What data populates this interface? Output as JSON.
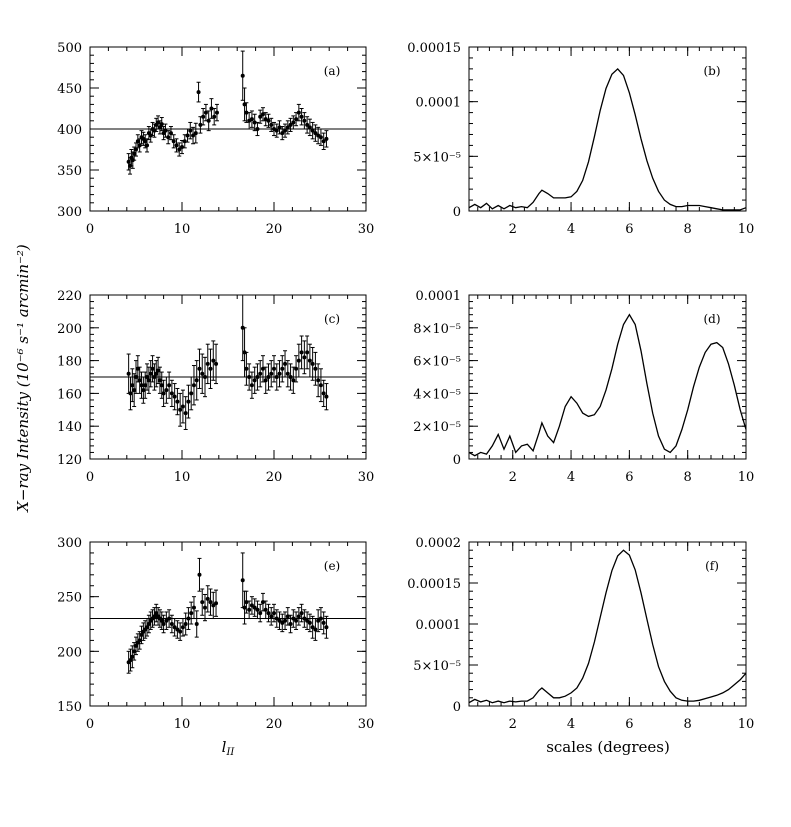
{
  "figure": {
    "ylabel": "X−ray Intensity (10⁻⁶ s⁻¹ arcmin⁻²)",
    "left_xlabel": "l",
    "left_xlabel_sub": "II",
    "right_xlabel": "scales (degrees)"
  },
  "chart_data": [
    {
      "panel": "(a)",
      "type": "scatter",
      "error_bars": true,
      "xlim": [
        0,
        30
      ],
      "ylim": [
        300,
        500
      ],
      "xticks": [
        0,
        10,
        20,
        30
      ],
      "yticks": [
        300,
        350,
        400,
        450,
        500
      ],
      "hline": 400,
      "x": [
        4.2,
        4.35,
        4.5,
        4.65,
        4.8,
        5.0,
        5.2,
        5.4,
        5.6,
        5.8,
        6.0,
        6.2,
        6.4,
        6.6,
        6.8,
        7.0,
        7.2,
        7.4,
        7.6,
        7.8,
        8.0,
        8.2,
        8.5,
        8.8,
        9.1,
        9.4,
        9.7,
        10.0,
        10.3,
        10.6,
        10.9,
        11.2,
        11.5,
        11.8,
        12.0,
        12.3,
        12.6,
        12.9,
        13.2,
        13.5,
        13.8,
        16.6,
        16.8,
        17.0,
        17.3,
        17.6,
        17.9,
        18.2,
        18.5,
        18.8,
        19.1,
        19.4,
        19.7,
        20.0,
        20.3,
        20.6,
        20.9,
        21.2,
        21.5,
        21.8,
        22.1,
        22.4,
        22.7,
        23.0,
        23.3,
        23.6,
        23.9,
        24.2,
        24.5,
        24.8,
        25.1,
        25.4,
        25.7
      ],
      "y": [
        360,
        355,
        365,
        362,
        370,
        375,
        385,
        380,
        390,
        388,
        385,
        380,
        395,
        392,
        400,
        398,
        405,
        408,
        402,
        406,
        395,
        398,
        390,
        395,
        385,
        380,
        375,
        378,
        385,
        392,
        398,
        392,
        395,
        445,
        405,
        415,
        420,
        410,
        425,
        415,
        420,
        465,
        430,
        420,
        410,
        412,
        408,
        400,
        415,
        418,
        412,
        410,
        405,
        400,
        398,
        402,
        395,
        398,
        402,
        405,
        408,
        412,
        420,
        415,
        410,
        405,
        402,
        398,
        395,
        392,
        390,
        385,
        388
      ],
      "err": [
        10,
        10,
        10,
        10,
        8,
        8,
        8,
        8,
        8,
        8,
        8,
        8,
        8,
        8,
        8,
        8,
        8,
        8,
        8,
        8,
        8,
        8,
        8,
        8,
        8,
        8,
        8,
        8,
        8,
        8,
        10,
        10,
        12,
        12,
        10,
        10,
        10,
        12,
        12,
        10,
        10,
        30,
        20,
        12,
        10,
        10,
        10,
        8,
        8,
        8,
        8,
        8,
        8,
        8,
        8,
        8,
        8,
        8,
        8,
        8,
        8,
        8,
        10,
        10,
        10,
        10,
        10,
        10,
        10,
        10,
        10,
        10,
        10
      ]
    },
    {
      "panel": "(b)",
      "type": "line",
      "xlim": [
        0.5,
        10
      ],
      "ylim": [
        0,
        0.00015
      ],
      "xticks": [
        2,
        4,
        6,
        8,
        10
      ],
      "yticks": [
        0,
        5e-05,
        0.0001,
        0.00015
      ],
      "ytick_labels": [
        "0",
        "5×10⁻⁵",
        "0.0001",
        "0.00015"
      ],
      "x": [
        0.5,
        0.7,
        0.9,
        1.1,
        1.3,
        1.5,
        1.7,
        1.9,
        2.1,
        2.3,
        2.5,
        2.7,
        2.9,
        3.0,
        3.2,
        3.4,
        3.6,
        3.8,
        4.0,
        4.2,
        4.4,
        4.6,
        4.8,
        5.0,
        5.2,
        5.4,
        5.6,
        5.8,
        6.0,
        6.2,
        6.4,
        6.6,
        6.8,
        7.0,
        7.2,
        7.4,
        7.6,
        7.8,
        8.0,
        8.2,
        8.4,
        8.6,
        8.8,
        9.0,
        9.2,
        9.4,
        9.6,
        9.8,
        10.0
      ],
      "y": [
        3e-06,
        6e-06,
        3e-06,
        7e-06,
        2e-06,
        5e-06,
        2e-06,
        5e-06,
        3e-06,
        4e-06,
        3e-06,
        8e-06,
        1.6e-05,
        1.9e-05,
        1.6e-05,
        1.2e-05,
        1.2e-05,
        1.2e-05,
        1.3e-05,
        1.8e-05,
        2.8e-05,
        4.5e-05,
        6.8e-05,
        9.2e-05,
        0.000112,
        0.000125,
        0.00013,
        0.000124,
        0.000108,
        8.8e-05,
        6.6e-05,
        4.6e-05,
        3e-05,
        1.8e-05,
        1e-05,
        6e-06,
        4e-06,
        4e-06,
        5e-06,
        5e-06,
        5e-06,
        4e-06,
        3e-06,
        2e-06,
        1e-06,
        1e-06,
        1e-06,
        1e-06,
        3e-06
      ]
    },
    {
      "panel": "(c)",
      "type": "scatter",
      "error_bars": true,
      "xlim": [
        0,
        30
      ],
      "ylim": [
        120,
        220
      ],
      "xticks": [
        0,
        10,
        20,
        30
      ],
      "yticks": [
        120,
        140,
        160,
        180,
        200,
        220
      ],
      "hline": 170,
      "x": [
        4.2,
        4.4,
        4.6,
        4.8,
        5.0,
        5.2,
        5.4,
        5.6,
        5.8,
        6.0,
        6.2,
        6.4,
        6.6,
        6.8,
        7.0,
        7.2,
        7.4,
        7.6,
        7.8,
        8.0,
        8.3,
        8.6,
        8.9,
        9.2,
        9.5,
        9.8,
        10.1,
        10.4,
        10.7,
        11.0,
        11.3,
        11.6,
        11.9,
        12.2,
        12.5,
        12.8,
        13.1,
        13.4,
        13.7,
        16.6,
        16.8,
        17.0,
        17.3,
        17.6,
        17.9,
        18.2,
        18.5,
        18.8,
        19.1,
        19.4,
        19.7,
        20.0,
        20.3,
        20.6,
        20.9,
        21.2,
        21.5,
        21.8,
        22.1,
        22.4,
        22.7,
        23.0,
        23.3,
        23.6,
        23.9,
        24.2,
        24.5,
        24.8,
        25.1,
        25.4,
        25.7
      ],
      "y": [
        172,
        160,
        165,
        162,
        170,
        175,
        168,
        165,
        162,
        165,
        170,
        168,
        172,
        175,
        170,
        172,
        174,
        168,
        165,
        160,
        162,
        165,
        160,
        158,
        155,
        150,
        152,
        148,
        155,
        160,
        165,
        168,
        175,
        172,
        170,
        178,
        175,
        180,
        178,
        200,
        185,
        175,
        170,
        165,
        168,
        170,
        172,
        175,
        168,
        170,
        172,
        175,
        170,
        172,
        175,
        178,
        172,
        170,
        168,
        175,
        180,
        185,
        182,
        185,
        180,
        178,
        175,
        168,
        165,
        160,
        158
      ],
      "err": [
        12,
        10,
        10,
        10,
        10,
        8,
        8,
        8,
        8,
        8,
        8,
        8,
        8,
        8,
        8,
        8,
        8,
        8,
        8,
        8,
        8,
        8,
        8,
        8,
        8,
        10,
        10,
        10,
        10,
        10,
        12,
        12,
        12,
        12,
        12,
        12,
        12,
        12,
        12,
        20,
        15,
        10,
        8,
        8,
        8,
        8,
        8,
        8,
        8,
        8,
        8,
        8,
        8,
        8,
        8,
        8,
        8,
        8,
        8,
        8,
        10,
        10,
        10,
        10,
        10,
        10,
        10,
        10,
        10,
        8,
        8
      ]
    },
    {
      "panel": "(d)",
      "type": "line",
      "xlim": [
        0.5,
        10
      ],
      "ylim": [
        0,
        0.0001
      ],
      "xticks": [
        2,
        4,
        6,
        8,
        10
      ],
      "yticks": [
        0,
        2e-05,
        4e-05,
        6e-05,
        8e-05,
        0.0001
      ],
      "ytick_labels": [
        "0",
        "2×10⁻⁵",
        "4×10⁻⁵",
        "6×10⁻⁵",
        "8×10⁻⁵",
        "0.0001"
      ],
      "x": [
        0.5,
        0.7,
        0.9,
        1.1,
        1.3,
        1.5,
        1.7,
        1.9,
        2.1,
        2.3,
        2.5,
        2.7,
        2.9,
        3.0,
        3.2,
        3.4,
        3.6,
        3.8,
        4.0,
        4.2,
        4.4,
        4.6,
        4.8,
        5.0,
        5.2,
        5.4,
        5.6,
        5.8,
        6.0,
        6.2,
        6.4,
        6.6,
        6.8,
        7.0,
        7.2,
        7.4,
        7.6,
        7.8,
        8.0,
        8.2,
        8.4,
        8.6,
        8.8,
        9.0,
        9.2,
        9.4,
        9.6,
        9.8,
        10.0
      ],
      "y": [
        4e-06,
        2e-06,
        4e-06,
        3e-06,
        8e-06,
        1.5e-05,
        6e-06,
        1.4e-05,
        4e-06,
        8e-06,
        9e-06,
        5e-06,
        1.6e-05,
        2.2e-05,
        1.4e-05,
        1e-05,
        2e-05,
        3.2e-05,
        3.8e-05,
        3.4e-05,
        2.8e-05,
        2.6e-05,
        2.7e-05,
        3.2e-05,
        4.2e-05,
        5.5e-05,
        7e-05,
        8.2e-05,
        8.8e-05,
        8.2e-05,
        6.6e-05,
        4.6e-05,
        2.8e-05,
        1.4e-05,
        6e-06,
        4e-06,
        8e-06,
        1.8e-05,
        3e-05,
        4.4e-05,
        5.6e-05,
        6.5e-05,
        7e-05,
        7.1e-05,
        6.8e-05,
        5.8e-05,
        4.5e-05,
        3e-05,
        1.8e-05
      ]
    },
    {
      "panel": "(e)",
      "type": "scatter",
      "error_bars": true,
      "xlim": [
        0,
        30
      ],
      "ylim": [
        150,
        300
      ],
      "xticks": [
        0,
        10,
        20,
        30
      ],
      "yticks": [
        150,
        200,
        250,
        300
      ],
      "hline": 230,
      "x": [
        4.2,
        4.4,
        4.6,
        4.8,
        5.0,
        5.2,
        5.4,
        5.6,
        5.8,
        6.0,
        6.2,
        6.4,
        6.6,
        6.8,
        7.0,
        7.2,
        7.4,
        7.6,
        7.8,
        8.0,
        8.3,
        8.6,
        8.9,
        9.2,
        9.5,
        9.8,
        10.1,
        10.4,
        10.7,
        11.0,
        11.3,
        11.6,
        11.9,
        12.2,
        12.5,
        12.8,
        13.1,
        13.4,
        13.7,
        16.6,
        16.8,
        17.0,
        17.3,
        17.6,
        17.9,
        18.2,
        18.5,
        18.8,
        19.1,
        19.4,
        19.7,
        20.0,
        20.3,
        20.6,
        20.9,
        21.2,
        21.5,
        21.8,
        22.1,
        22.4,
        22.7,
        23.0,
        23.3,
        23.6,
        23.9,
        24.2,
        24.5,
        24.8,
        25.1,
        25.4,
        25.7
      ],
      "y": [
        190,
        192,
        195,
        200,
        205,
        208,
        210,
        215,
        218,
        220,
        222,
        225,
        228,
        230,
        232,
        235,
        232,
        230,
        228,
        225,
        228,
        230,
        225,
        222,
        220,
        218,
        222,
        225,
        230,
        235,
        240,
        225,
        270,
        245,
        240,
        248,
        245,
        242,
        244,
        265,
        240,
        245,
        238,
        242,
        240,
        238,
        235,
        245,
        238,
        235,
        232,
        235,
        230,
        228,
        226,
        228,
        232,
        225,
        230,
        228,
        232,
        235,
        230,
        228,
        226,
        222,
        220,
        228,
        230,
        226,
        222
      ],
      "err": [
        10,
        10,
        10,
        8,
        8,
        8,
        8,
        8,
        8,
        8,
        8,
        8,
        8,
        8,
        8,
        8,
        8,
        8,
        8,
        8,
        8,
        8,
        8,
        8,
        8,
        8,
        8,
        10,
        10,
        10,
        10,
        12,
        15,
        12,
        12,
        12,
        12,
        12,
        12,
        25,
        15,
        10,
        8,
        8,
        8,
        8,
        8,
        8,
        8,
        8,
        8,
        8,
        8,
        8,
        8,
        8,
        8,
        8,
        8,
        8,
        8,
        8,
        8,
        8,
        8,
        10,
        10,
        10,
        10,
        10,
        10
      ]
    },
    {
      "panel": "(f)",
      "type": "line",
      "xlim": [
        0.5,
        10
      ],
      "ylim": [
        0,
        0.0002
      ],
      "xticks": [
        2,
        4,
        6,
        8,
        10
      ],
      "yticks": [
        0,
        5e-05,
        0.0001,
        0.00015,
        0.0002
      ],
      "ytick_labels": [
        "0",
        "5×10⁻⁵",
        "0.0001",
        "0.00015",
        "0.0002"
      ],
      "x": [
        0.5,
        0.7,
        0.9,
        1.1,
        1.3,
        1.5,
        1.7,
        1.9,
        2.1,
        2.3,
        2.5,
        2.7,
        2.9,
        3.0,
        3.2,
        3.4,
        3.6,
        3.8,
        4.0,
        4.2,
        4.4,
        4.6,
        4.8,
        5.0,
        5.2,
        5.4,
        5.6,
        5.8,
        6.0,
        6.2,
        6.4,
        6.6,
        6.8,
        7.0,
        7.2,
        7.4,
        7.6,
        7.8,
        8.0,
        8.2,
        8.4,
        8.6,
        8.8,
        9.0,
        9.2,
        9.4,
        9.6,
        9.8,
        10.0
      ],
      "y": [
        4e-06,
        8e-06,
        5e-06,
        7e-06,
        4e-06,
        6e-06,
        4e-06,
        6e-06,
        5e-06,
        6e-06,
        6e-06,
        1e-05,
        1.9e-05,
        2.2e-05,
        1.6e-05,
        1e-05,
        1e-05,
        1.2e-05,
        1.6e-05,
        2.2e-05,
        3.4e-05,
        5.2e-05,
        7.8e-05,
        0.000108,
        0.000138,
        0.000165,
        0.000183,
        0.00019,
        0.000184,
        0.000166,
        0.000138,
        0.000106,
        7.5e-05,
        4.8e-05,
        3e-05,
        1.8e-05,
        1e-05,
        7e-06,
        6e-06,
        6e-06,
        7e-06,
        9e-06,
        1.1e-05,
        1.3e-05,
        1.6e-05,
        2e-05,
        2.6e-05,
        3.2e-05,
        4e-05
      ]
    }
  ]
}
